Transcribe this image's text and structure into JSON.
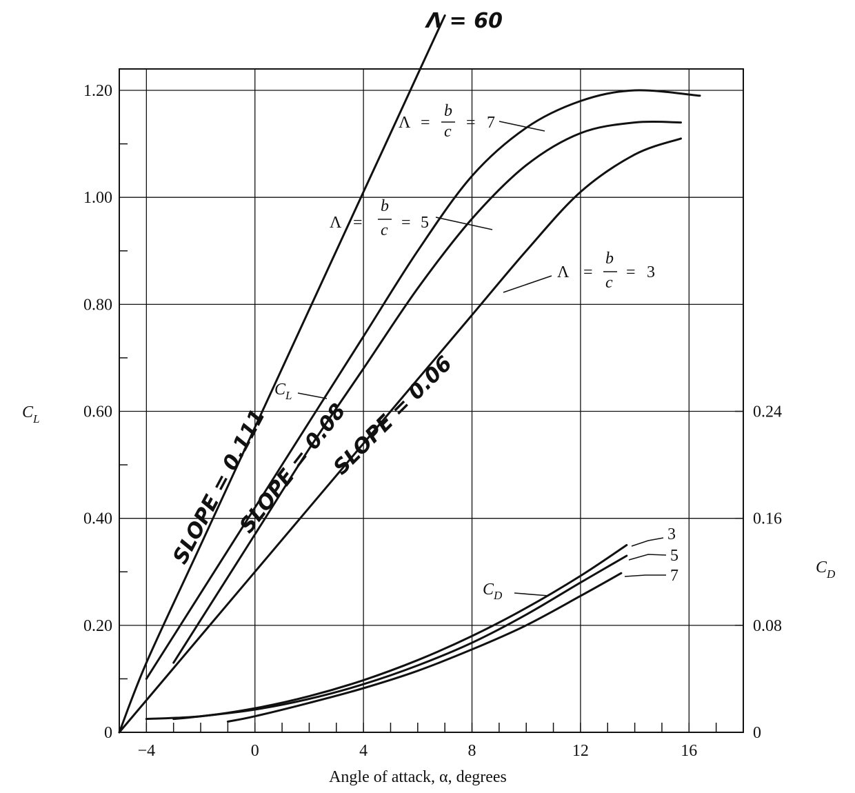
{
  "chart_data": {
    "type": "line",
    "title": "",
    "xlabel": "Angle of attack, α, degrees",
    "ylabel_left": "C",
    "ylabel_left_sub": "L",
    "ylabel_right": "C",
    "ylabel_right_sub": "D",
    "xlim": [
      -5,
      18
    ],
    "ylim_left": [
      0,
      1.24
    ],
    "ylim_right": [
      0,
      0.496
    ],
    "grid": true,
    "x_ticks": [
      -4,
      0,
      4,
      8,
      12,
      16
    ],
    "x_tick_labels": [
      "−4",
      "0",
      "4",
      "8",
      "12",
      "16"
    ],
    "y_left_ticks": [
      0,
      0.2,
      0.4,
      0.6,
      0.8,
      1.0,
      1.2
    ],
    "y_left_tick_labels": [
      "0",
      "0.20",
      "0.40",
      "0.60",
      "0.80",
      "1.00",
      "1.20"
    ],
    "y_right_ticks": [
      0,
      0.08,
      0.16,
      0.24
    ],
    "y_right_tick_labels": [
      "0",
      "0.08",
      "0.16",
      "0.24"
    ],
    "cl_series": [
      {
        "name": "Λ = 60",
        "x": [
          -5,
          -4,
          -2,
          0,
          2,
          4,
          6,
          7
        ],
        "y": [
          0,
          0.13,
          0.35,
          0.57,
          0.79,
          1.01,
          1.23,
          1.34
        ]
      },
      {
        "name": "Λ = b/c = 7",
        "x": [
          -4,
          -2,
          0,
          2,
          4,
          6,
          8,
          10,
          12,
          14,
          16.4
        ],
        "y": [
          0.1,
          0.26,
          0.42,
          0.58,
          0.74,
          0.9,
          1.04,
          1.13,
          1.18,
          1.2,
          1.19
        ]
      },
      {
        "name": "Λ = b/c = 5",
        "x": [
          -3,
          -2,
          0,
          2,
          4,
          6,
          8,
          10,
          12,
          14,
          15.7
        ],
        "y": [
          0.13,
          0.21,
          0.37,
          0.53,
          0.68,
          0.83,
          0.96,
          1.06,
          1.12,
          1.14,
          1.14
        ]
      },
      {
        "name": "Λ = b/c = 3",
        "x": [
          -5,
          -4,
          -2,
          0,
          2,
          4,
          6,
          8,
          10,
          12,
          14,
          15.7
        ],
        "y": [
          0,
          0.06,
          0.18,
          0.3,
          0.42,
          0.54,
          0.66,
          0.78,
          0.9,
          1.01,
          1.08,
          1.11
        ]
      }
    ],
    "cd_series": [
      {
        "name": "3",
        "x": [
          -4,
          -2,
          0,
          2,
          4,
          6,
          8,
          10,
          12,
          13.7
        ],
        "y": [
          0.01,
          0.012,
          0.018,
          0.027,
          0.039,
          0.054,
          0.072,
          0.093,
          0.117,
          0.14
        ]
      },
      {
        "name": "5",
        "x": [
          -3,
          -2,
          0,
          2,
          4,
          6,
          8,
          10,
          12,
          13.7
        ],
        "y": [
          0.01,
          0.012,
          0.017,
          0.025,
          0.036,
          0.05,
          0.067,
          0.088,
          0.112,
          0.132
        ]
      },
      {
        "name": "7",
        "x": [
          -1,
          0,
          2,
          4,
          6,
          8,
          10,
          12,
          13.5
        ],
        "y": [
          0.008,
          0.012,
          0.022,
          0.033,
          0.046,
          0.062,
          0.08,
          0.102,
          0.119
        ]
      }
    ],
    "annotations": {
      "lam60": "Λ = 60",
      "lam": "Λ",
      "eq": "=",
      "b": "b",
      "c": "c",
      "a7": "7",
      "a5": "5",
      "a3": "3",
      "cl_label": "C",
      "cl_sub": "L",
      "cd_label": "C",
      "cd_sub": "D",
      "cd3": "3",
      "cd5": "5",
      "cd7": "7",
      "slope1": "SLOPE = 0.111",
      "slope2": "SLOPE = 0.08",
      "slope3": "SLOPE = 0.06"
    }
  }
}
